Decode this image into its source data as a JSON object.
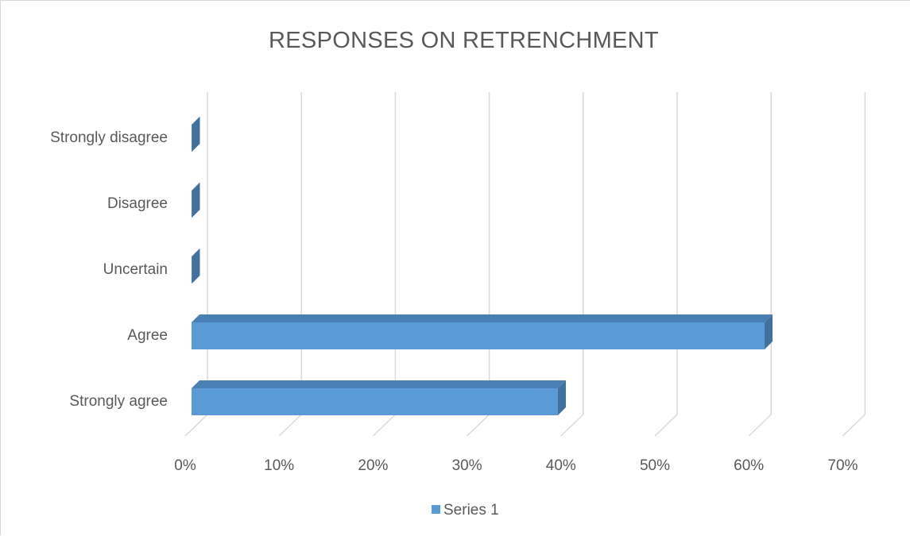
{
  "chart_data": {
    "type": "bar",
    "orientation": "horizontal",
    "style": "3d-clustered",
    "title": "RESPONSES ON RETRENCHMENT",
    "categories": [
      "Strongly agree",
      "Agree",
      "Uncertain",
      "Disagree",
      "Strongly disagree"
    ],
    "series": [
      {
        "name": "Series 1",
        "values": [
          39,
          61,
          0,
          0,
          0
        ],
        "color": "#5b9bd5",
        "dark_color": "#41719c",
        "top_color": "#4a7fb3"
      }
    ],
    "xlim": [
      0,
      70
    ],
    "x_ticks": [
      "0%",
      "10%",
      "20%",
      "30%",
      "40%",
      "50%",
      "60%",
      "70%"
    ],
    "grid": true,
    "legend_position": "bottom"
  }
}
